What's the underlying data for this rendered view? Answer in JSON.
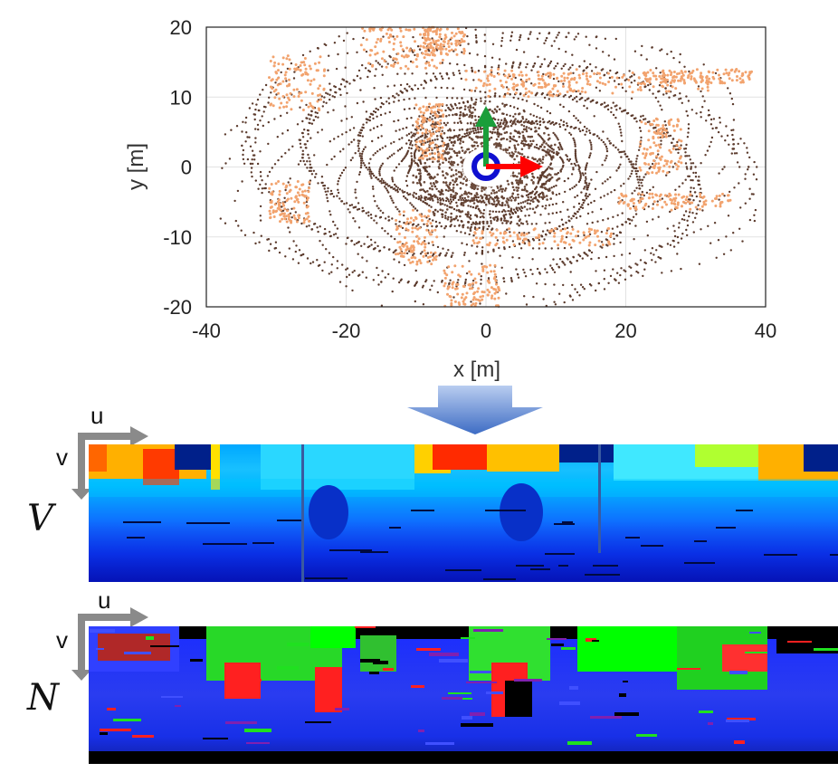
{
  "chart_data": {
    "type": "scatter",
    "xlabel": "x [m]",
    "ylabel": "y [m]",
    "xlim": [
      -40,
      40
    ],
    "ylim": [
      -20,
      20
    ],
    "x_ticks": [
      "-40",
      "-20",
      "0",
      "20",
      "40"
    ],
    "y_ticks": [
      "20",
      "10",
      "0",
      "-10",
      "-20"
    ],
    "grid": true,
    "colors": {
      "ground_points": "#5b3a2c",
      "object_points": "#f2a36e",
      "x_axis_arrow": "#ff0000",
      "y_axis_arrow": "#1a9e3a",
      "sensor_circle": "#1010d0"
    }
  },
  "axes_letters": {
    "u": "u",
    "v": "v"
  },
  "image_labels": {
    "vertex_map": "V",
    "normal_map": "N"
  },
  "colors": {
    "arrow_down": "#5b7ec8"
  }
}
